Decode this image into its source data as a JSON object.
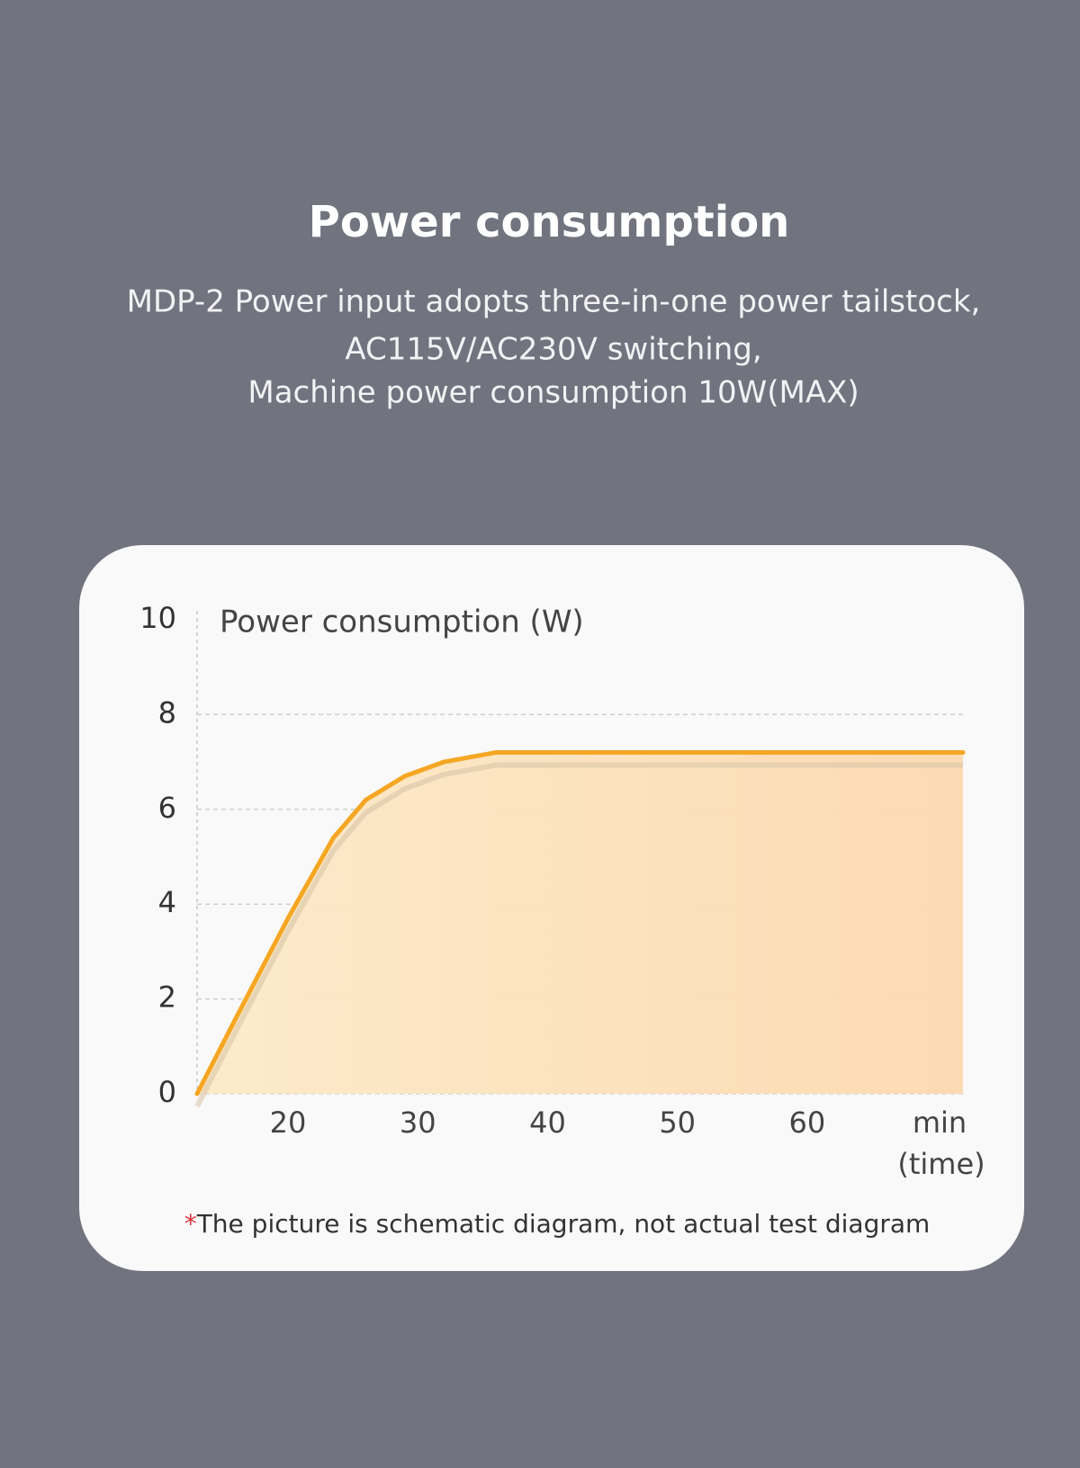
{
  "header": {
    "title": "Power consumption",
    "lines": [
      "MDP-2 Power input adopts three-in-one power tailstock,",
      "AC115V/AC230V switching,",
      "Machine power consumption 10W(MAX)"
    ]
  },
  "chart_data": {
    "type": "line",
    "y_label": "Power consumption (W)",
    "x_unit": [
      "min",
      "(time)"
    ],
    "x": [
      13,
      16,
      20,
      23.5,
      26,
      29,
      32,
      36,
      40,
      50,
      60,
      72
    ],
    "series": [
      {
        "name": "Power consumption",
        "color": "#f5a623",
        "values": [
          0,
          1.6,
          3.7,
          5.4,
          6.2,
          6.7,
          7.0,
          7.2,
          7.2,
          7.2,
          7.2,
          7.2
        ]
      }
    ],
    "xlim": [
      13,
      72
    ],
    "xticks": [
      20,
      30,
      40,
      50,
      60
    ],
    "ylim": [
      0,
      10
    ],
    "yticks": [
      0,
      2,
      4,
      6,
      8,
      10
    ],
    "grid": true
  },
  "footnote": {
    "marker": "*",
    "text": "The picture is schematic diagram, not actual test diagram"
  }
}
